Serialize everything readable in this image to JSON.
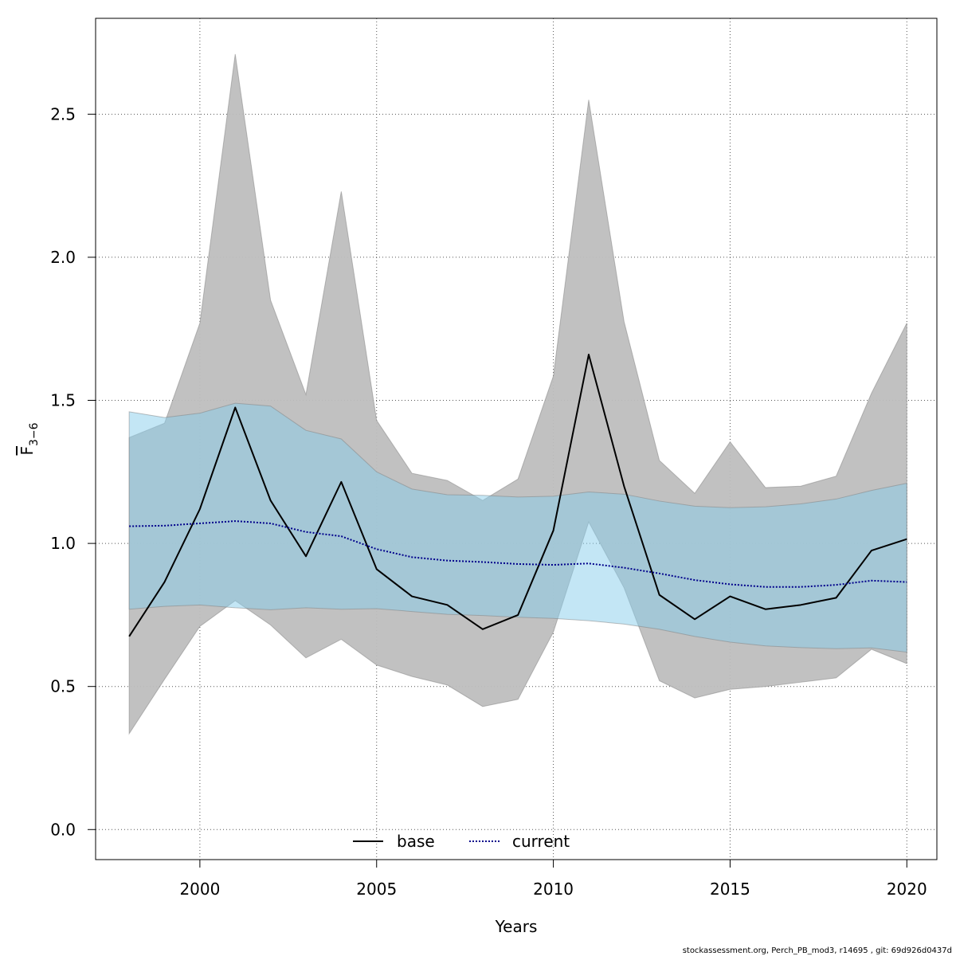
{
  "chart_data": {
    "type": "line",
    "xlabel": "Years",
    "ylabel_main": "F",
    "ylabel_sub": "3−6",
    "xlim": [
      1997.05,
      2020.85
    ],
    "ylim": [
      -0.105,
      2.835
    ],
    "x_ticks": [
      2000,
      2005,
      2010,
      2015,
      2020
    ],
    "y_ticks": [
      0.0,
      0.5,
      1.0,
      1.5,
      2.0,
      2.5
    ],
    "x_tick_labels": [
      "2000",
      "2005",
      "2010",
      "2015",
      "2020"
    ],
    "y_tick_labels": [
      "0.0",
      "0.5",
      "1.0",
      "1.5",
      "2.0",
      "2.5"
    ],
    "grid": true,
    "legend_position": "bottom-center",
    "x": [
      1998,
      1999,
      2000,
      2001,
      2002,
      2003,
      2004,
      2005,
      2006,
      2007,
      2008,
      2009,
      2010,
      2011,
      2012,
      2013,
      2014,
      2015,
      2016,
      2017,
      2018,
      2019,
      2020
    ],
    "series": [
      {
        "name": "base",
        "line_style": "solid",
        "color": "#000000",
        "band_color": "#bebebe",
        "values": [
          0.675,
          0.865,
          1.12,
          1.475,
          1.15,
          0.955,
          1.215,
          0.91,
          0.815,
          0.785,
          0.7,
          0.75,
          1.045,
          1.66,
          1.2,
          0.82,
          0.735,
          0.815,
          0.77,
          0.785,
          0.81,
          0.975,
          1.015
        ],
        "lower": [
          0.335,
          0.525,
          0.71,
          0.8,
          0.715,
          0.6,
          0.665,
          0.575,
          0.535,
          0.505,
          0.43,
          0.455,
          0.69,
          1.075,
          0.845,
          0.52,
          0.46,
          0.49,
          0.5,
          0.515,
          0.53,
          0.63,
          0.58
        ],
        "upper": [
          1.37,
          1.42,
          1.77,
          2.71,
          1.85,
          1.52,
          2.23,
          1.43,
          1.245,
          1.22,
          1.15,
          1.225,
          1.585,
          2.55,
          1.775,
          1.29,
          1.175,
          1.355,
          1.195,
          1.2,
          1.235,
          1.525,
          1.77
        ]
      },
      {
        "name": "current",
        "line_style": "dotted",
        "color": "#00008b",
        "band_color": "#87ceeb",
        "values": [
          1.06,
          1.062,
          1.07,
          1.078,
          1.07,
          1.04,
          1.025,
          0.98,
          0.952,
          0.94,
          0.935,
          0.928,
          0.925,
          0.93,
          0.915,
          0.895,
          0.872,
          0.857,
          0.848,
          0.848,
          0.855,
          0.87,
          0.865
        ],
        "lower": [
          0.77,
          0.78,
          0.785,
          0.775,
          0.768,
          0.775,
          0.77,
          0.772,
          0.762,
          0.752,
          0.748,
          0.742,
          0.738,
          0.73,
          0.718,
          0.7,
          0.675,
          0.655,
          0.642,
          0.636,
          0.632,
          0.635,
          0.62
        ],
        "upper": [
          1.46,
          1.44,
          1.455,
          1.49,
          1.48,
          1.395,
          1.365,
          1.25,
          1.19,
          1.17,
          1.168,
          1.162,
          1.165,
          1.18,
          1.172,
          1.148,
          1.13,
          1.125,
          1.128,
          1.138,
          1.155,
          1.185,
          1.21
        ]
      }
    ]
  },
  "footer_text": "stockassessment.org, Perch_PB_mod3, r14695 , git: 69d926d0437d"
}
